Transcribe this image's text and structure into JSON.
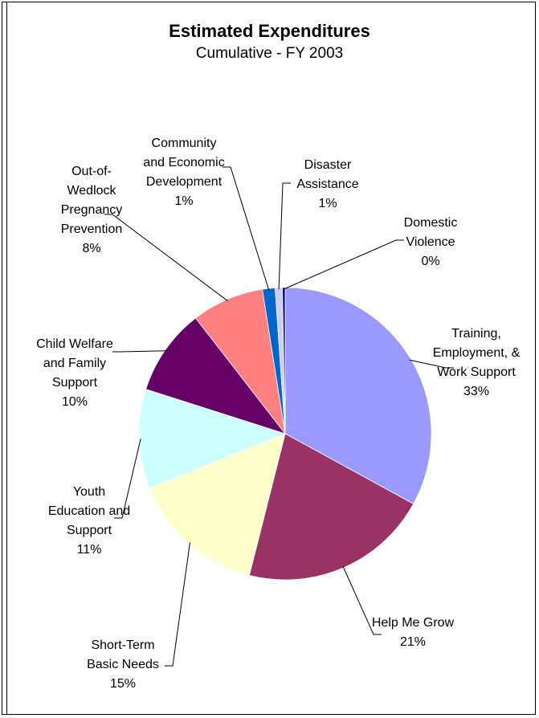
{
  "chart_data": {
    "type": "pie",
    "title": "Estimated Expenditures",
    "subtitle": "Cumulative - FY 2003",
    "slices": [
      {
        "label_lines": [
          "Training,",
          "Employment, &",
          "Work Support",
          "33%"
        ],
        "percent": 33,
        "value": 33.0,
        "color": "#9999FF"
      },
      {
        "label_lines": [
          "Help Me Grow",
          "21%"
        ],
        "percent": 21,
        "value": 21.0,
        "color": "#993366"
      },
      {
        "label_lines": [
          "Short-Term",
          "Basic Needs",
          "15%"
        ],
        "percent": 15,
        "value": 15.0,
        "color": "#FFFFCC"
      },
      {
        "label_lines": [
          "Youth",
          "Education and",
          "Support",
          "11%"
        ],
        "percent": 11,
        "value": 11.0,
        "color": "#CCFFFF"
      },
      {
        "label_lines": [
          "Child Welfare",
          "and Family",
          "Support",
          "10%"
        ],
        "percent": 10,
        "value": 9.6,
        "color": "#660066"
      },
      {
        "label_lines": [
          "Out-of-",
          "Wedlock",
          "Pregnancy",
          "Prevention",
          "8%"
        ],
        "percent": 8,
        "value": 8.0,
        "color": "#FF8080"
      },
      {
        "label_lines": [
          "Community",
          "and Economic",
          "Development",
          "1%"
        ],
        "percent": 1,
        "value": 1.4,
        "color": "#0066CC"
      },
      {
        "label_lines": [
          "Disaster",
          "Assistance",
          "1%"
        ],
        "percent": 1,
        "value": 0.8,
        "color": "#CCCCFF"
      },
      {
        "label_lines": [
          "Domestic",
          "Violence",
          "0%"
        ],
        "percent": 0,
        "value": 0.3,
        "color": "#000080"
      }
    ]
  }
}
